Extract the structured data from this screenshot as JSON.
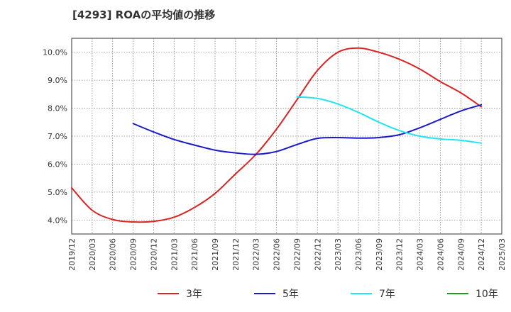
{
  "chart_data": {
    "type": "line",
    "title": "[4293]  ROAの平均値の推移",
    "xlabel": "",
    "ylabel": "",
    "x_categories": [
      "2019/12",
      "2020/03",
      "2020/06",
      "2020/09",
      "2020/12",
      "2021/03",
      "2021/06",
      "2021/09",
      "2021/12",
      "2022/03",
      "2022/06",
      "2022/09",
      "2022/12",
      "2023/03",
      "2023/06",
      "2023/09",
      "2023/12",
      "2024/03",
      "2024/06",
      "2024/09",
      "2024/12",
      "2025/03"
    ],
    "ylim": [
      3.5,
      10.5
    ],
    "y_ticks": [
      4.0,
      5.0,
      6.0,
      7.0,
      8.0,
      9.0,
      10.0
    ],
    "y_tick_labels": [
      "4.0%",
      "5.0%",
      "6.0%",
      "7.0%",
      "8.0%",
      "9.0%",
      "10.0%"
    ],
    "grid": true,
    "legend_position": "bottom",
    "series": [
      {
        "name": "3年",
        "color": "#dd2222",
        "x": [
          "2019/12",
          "2020/03",
          "2020/06",
          "2020/09",
          "2020/12",
          "2021/03",
          "2021/06",
          "2021/09",
          "2021/12",
          "2022/03",
          "2022/06",
          "2022/09",
          "2022/12",
          "2023/03",
          "2023/06",
          "2023/09",
          "2023/12",
          "2024/03",
          "2024/06",
          "2024/09",
          "2024/12"
        ],
        "values": [
          5.15,
          4.35,
          4.02,
          3.93,
          3.95,
          4.1,
          4.45,
          4.95,
          5.65,
          6.35,
          7.25,
          8.3,
          9.35,
          10.0,
          10.15,
          10.0,
          9.75,
          9.4,
          8.95,
          8.55,
          8.05
        ]
      },
      {
        "name": "5年",
        "color": "#1a1acc",
        "x": [
          "2020/09",
          "2020/12",
          "2021/03",
          "2021/06",
          "2021/09",
          "2021/12",
          "2022/03",
          "2022/06",
          "2022/09",
          "2022/12",
          "2023/03",
          "2023/06",
          "2023/09",
          "2023/12",
          "2024/03",
          "2024/06",
          "2024/09",
          "2024/12"
        ],
        "values": [
          7.45,
          7.15,
          6.88,
          6.68,
          6.5,
          6.4,
          6.35,
          6.45,
          6.7,
          6.92,
          6.95,
          6.93,
          6.95,
          7.05,
          7.3,
          7.6,
          7.9,
          8.12
        ]
      },
      {
        "name": "7年",
        "color": "#22e5ee",
        "x": [
          "2022/09",
          "2022/12",
          "2023/03",
          "2023/06",
          "2023/09",
          "2023/12",
          "2024/03",
          "2024/06",
          "2024/09",
          "2024/12"
        ],
        "values": [
          8.4,
          8.35,
          8.15,
          7.85,
          7.5,
          7.2,
          7.0,
          6.9,
          6.85,
          6.75
        ]
      },
      {
        "name": "10年",
        "color": "#229922",
        "x": [],
        "values": []
      }
    ]
  }
}
